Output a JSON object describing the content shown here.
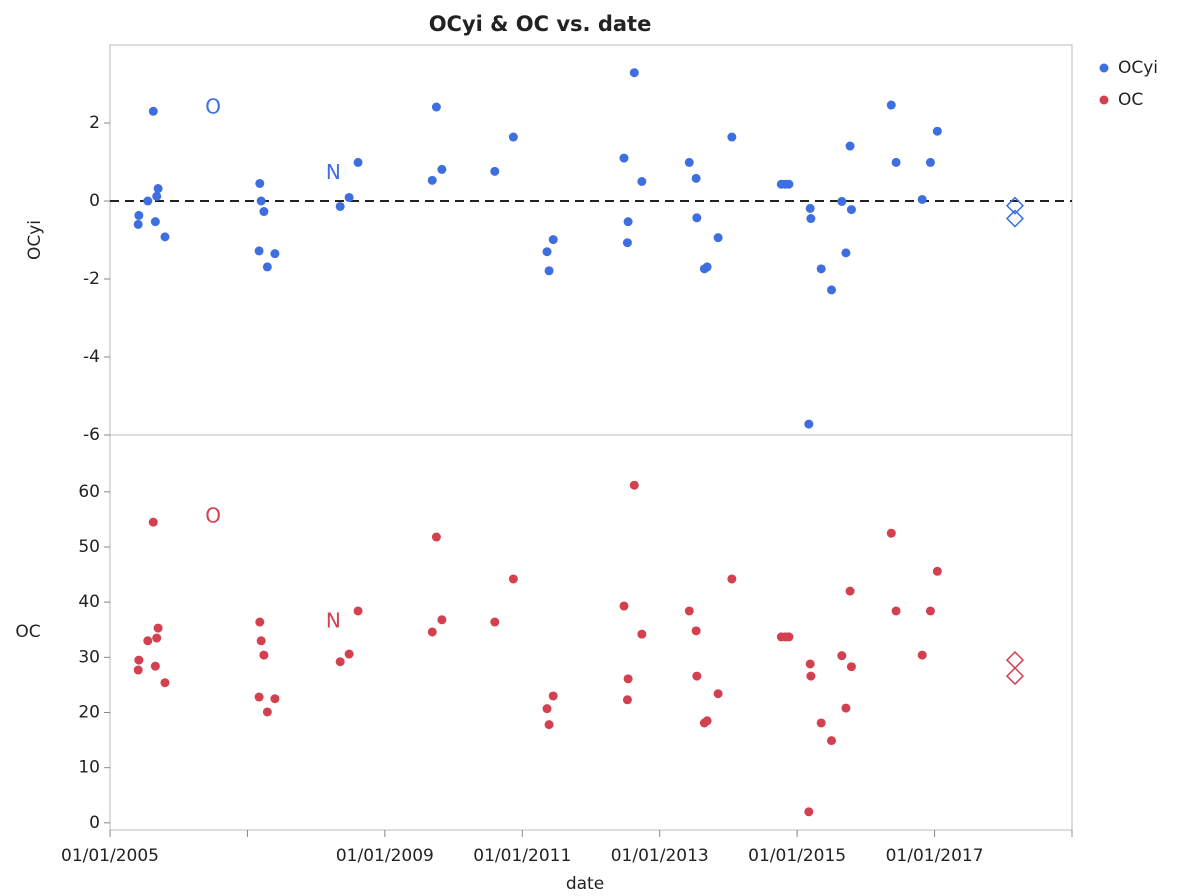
{
  "chart_data": [
    {
      "type": "scatter",
      "title": "OCyi & OC vs. date",
      "ylabel": "OCyi",
      "ylim": [
        -6,
        4
      ],
      "yticks": [
        -6,
        -4,
        -2,
        0,
        2
      ],
      "refline": 0,
      "xlim": [
        2005,
        2019
      ],
      "x": [
        2005.41,
        2005.42,
        2005.55,
        2005.63,
        2005.66,
        2005.68,
        2005.7,
        2005.8,
        2007.18,
        2007.2,
        2007.24,
        2007.17,
        2007.29,
        2007.4,
        2008.35,
        2008.48,
        2008.61,
        2009.69,
        2009.75,
        2009.83,
        2010.6,
        2010.87,
        2011.36,
        2011.39,
        2011.45,
        2012.48,
        2012.54,
        2012.53,
        2012.63,
        2012.74,
        2013.43,
        2013.53,
        2013.54,
        2013.65,
        2013.69,
        2013.85,
        2014.05,
        2014.77,
        2014.83,
        2014.88,
        2015.19,
        2015.2,
        2015.17,
        2015.35,
        2015.5,
        2015.65,
        2015.71,
        2015.77,
        2015.79,
        2016.37,
        2016.44,
        2016.82,
        2016.94,
        2017.04
      ],
      "series": [
        {
          "name": "OCyi",
          "color": "#3d6fe0",
          "values": [
            -0.6,
            -0.37,
            0.0,
            2.3,
            -0.53,
            0.12,
            0.32,
            -0.92,
            0.45,
            0.0,
            -0.27,
            -1.28,
            -1.69,
            -1.35,
            -0.14,
            0.09,
            0.99,
            0.53,
            2.41,
            0.81,
            0.76,
            1.64,
            -1.3,
            -1.79,
            -0.99,
            1.1,
            -0.53,
            -1.07,
            3.29,
            0.5,
            0.99,
            0.58,
            -0.43,
            -1.74,
            -1.69,
            -0.94,
            1.64,
            0.43,
            0.43,
            0.43,
            -0.19,
            -0.45,
            -5.72,
            -1.74,
            -2.28,
            -0.01,
            -1.33,
            1.41,
            -0.22,
            2.46,
            0.99,
            0.04,
            0.99,
            1.79
          ]
        }
      ],
      "annotations": [
        {
          "text": "O",
          "x": 2006.5,
          "y": 2.39
        },
        {
          "text": "N",
          "x": 2008.25,
          "y": 0.71
        }
      ],
      "diamonds": {
        "x": [
          2018.17,
          2018.17
        ],
        "y": [
          -0.12,
          -0.45
        ]
      }
    },
    {
      "type": "scatter",
      "ylabel": "OC",
      "xlabel": "date",
      "ylim": [
        -1.3,
        70.3
      ],
      "yticks": [
        0,
        10,
        20,
        30,
        40,
        50,
        60
      ],
      "xlim": [
        2005,
        2019
      ],
      "xticks": [
        {
          "value": 2005,
          "label": "01/01/2005"
        },
        {
          "value": 2007,
          "label": null
        },
        {
          "value": 2009,
          "label": "01/01/2009"
        },
        {
          "value": 2011,
          "label": "01/01/2011"
        },
        {
          "value": 2013,
          "label": "01/01/2013"
        },
        {
          "value": 2015,
          "label": "01/01/2015"
        },
        {
          "value": 2017,
          "label": "01/01/2017"
        },
        {
          "value": 2019,
          "label": null
        }
      ],
      "x": [
        2005.41,
        2005.42,
        2005.55,
        2005.63,
        2005.66,
        2005.68,
        2005.7,
        2005.8,
        2007.18,
        2007.2,
        2007.24,
        2007.17,
        2007.29,
        2007.4,
        2008.35,
        2008.48,
        2008.61,
        2009.69,
        2009.75,
        2009.83,
        2010.6,
        2010.87,
        2011.36,
        2011.39,
        2011.45,
        2012.48,
        2012.54,
        2012.53,
        2012.63,
        2012.74,
        2013.43,
        2013.53,
        2013.54,
        2013.65,
        2013.69,
        2013.85,
        2014.05,
        2014.77,
        2014.83,
        2014.88,
        2015.19,
        2015.2,
        2015.17,
        2015.35,
        2015.5,
        2015.65,
        2015.71,
        2015.77,
        2015.79,
        2016.37,
        2016.44,
        2016.82,
        2016.94,
        2017.04
      ],
      "series": [
        {
          "name": "OC",
          "color": "#d3404f",
          "values": [
            27.7,
            29.5,
            33,
            54.5,
            28.4,
            33.5,
            35.3,
            25.4,
            36.4,
            33,
            30.4,
            22.8,
            20.1,
            22.5,
            29.2,
            30.6,
            38.4,
            34.6,
            51.8,
            36.8,
            36.4,
            44.2,
            20.7,
            17.8,
            23,
            39.3,
            26.1,
            22.3,
            61.2,
            34.2,
            38.4,
            34.8,
            26.6,
            18.1,
            18.5,
            23.4,
            44.2,
            33.7,
            33.7,
            33.7,
            28.8,
            26.6,
            2,
            18.1,
            14.9,
            30.3,
            20.8,
            42,
            28.3,
            52.5,
            38.4,
            30.4,
            38.4,
            45.6
          ]
        }
      ],
      "annotations": [
        {
          "text": "O",
          "x": 2006.5,
          "y": 55.4
        },
        {
          "text": "N",
          "x": 2008.25,
          "y": 36.4
        }
      ],
      "diamonds": {
        "x": [
          2018.17,
          2018.17
        ],
        "y": [
          29.5,
          26.6
        ]
      }
    }
  ]
}
